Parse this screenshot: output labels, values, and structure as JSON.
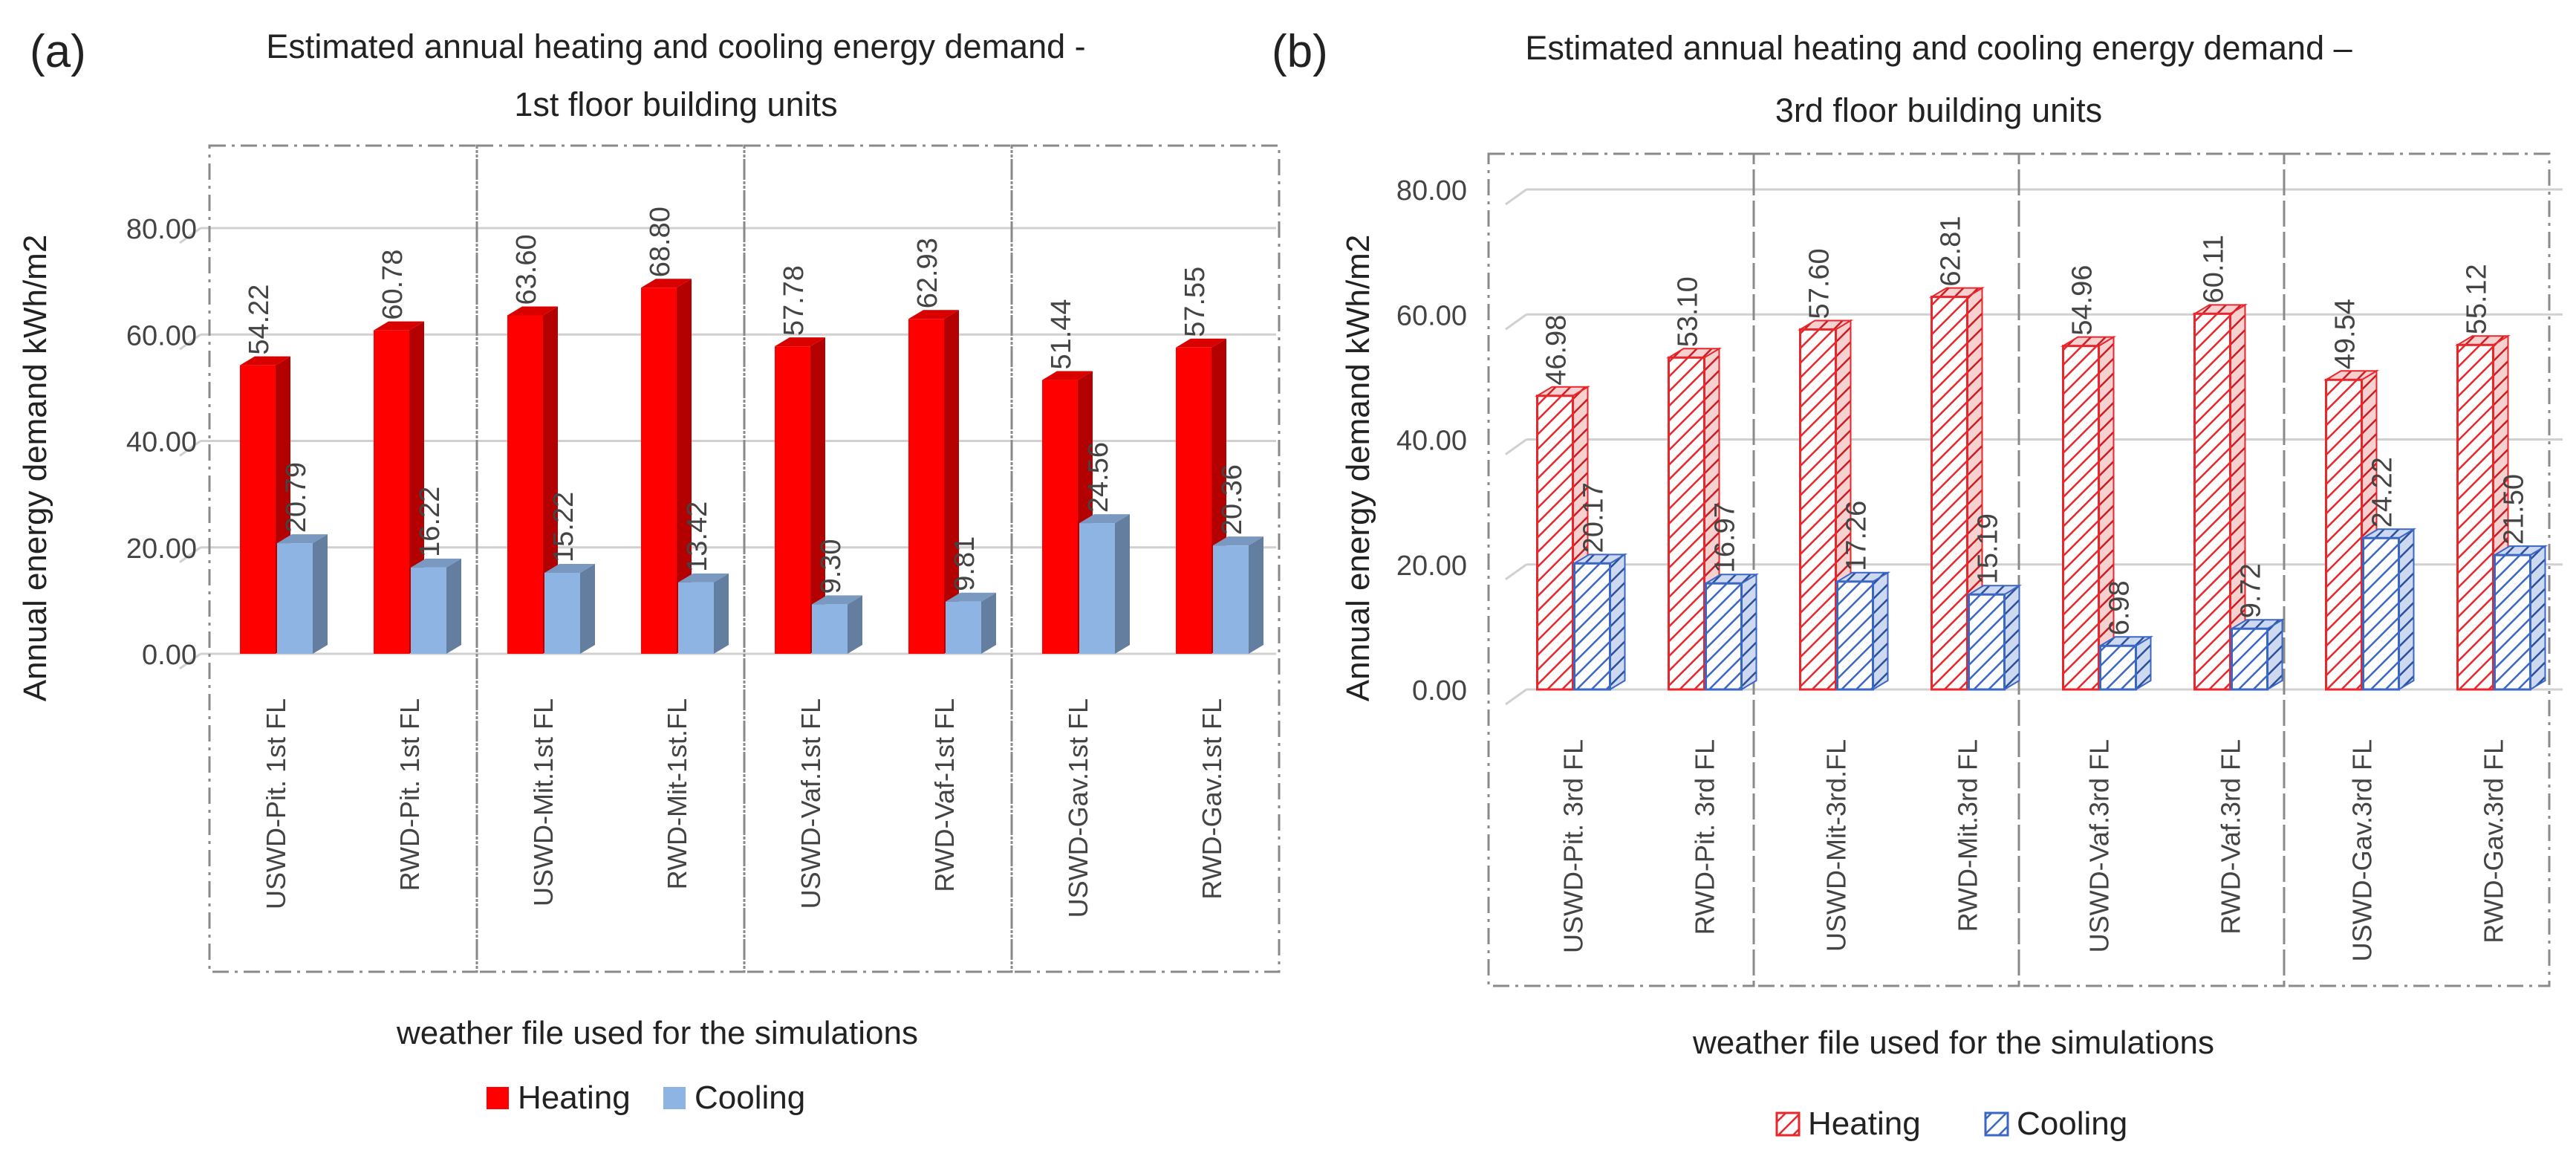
{
  "chart_data": [
    {
      "type": "bar",
      "panel_label": "(a)",
      "title_lines": [
        "Estimated annual heating and cooling energy demand -",
        "1st floor building units"
      ],
      "xlabel": "weather file used for the simulations",
      "ylabel": "Annual energy demand kWh/m2",
      "ylim": [
        0,
        80
      ],
      "yticks": [
        "0.00",
        "20.00",
        "40.00",
        "60.00",
        "80.00"
      ],
      "grid": true,
      "legend_position": "bottom",
      "bar_style": "solid",
      "categories": [
        "USWD-Pit. 1st FL",
        "RWD-Pit. 1st FL",
        "USWD-Mit.1st FL",
        "RWD-Mit-1st.FL",
        "USWD-Vaf.1st FL",
        "RWD-Vaf-1st FL",
        "USWD-Gav.1st FL",
        "RWD-Gav.1st FL"
      ],
      "series": [
        {
          "name": "Heating",
          "color": "#ff0000",
          "values": [
            54.22,
            60.78,
            63.6,
            68.8,
            57.78,
            62.93,
            51.44,
            57.55
          ],
          "labels": [
            "54.22",
            "60.78",
            "63.60",
            "68.80",
            "57.78",
            "62.93",
            "51.44",
            "57.55"
          ]
        },
        {
          "name": "Cooling",
          "color": "#8eb4e3",
          "values": [
            20.79,
            16.22,
            15.22,
            13.42,
            9.3,
            9.81,
            24.56,
            20.36
          ],
          "labels": [
            "20.79",
            "16.22",
            "15.22",
            "13.42",
            "9.30",
            "9.81",
            "24.56",
            "20.36"
          ]
        }
      ]
    },
    {
      "type": "bar",
      "panel_label": "(b)",
      "title_lines": [
        "Estimated annual heating and cooling energy demand –",
        "3rd floor building units"
      ],
      "xlabel": "weather file used for the simulations",
      "ylabel": "Annual energy demand kWh/m2",
      "ylim": [
        0,
        80
      ],
      "yticks": [
        "0.00",
        "20.00",
        "40.00",
        "60.00",
        "80.00"
      ],
      "grid": true,
      "legend_position": "bottom",
      "bar_style": "hatched",
      "categories": [
        "USWD-Pit. 3rd FL",
        "RWD-Pit. 3rd FL",
        "USWD-Mit-3rd.FL",
        "RWD-Mit.3rd FL",
        "USWD-Vaf.3rd FL",
        "RWD-Vaf.3rd FL",
        "USWD-Gav.3rd FL",
        "RWD-Gav.3rd FL"
      ],
      "series": [
        {
          "name": "Heating",
          "color": "#e8262b",
          "values": [
            46.98,
            53.1,
            57.6,
            62.81,
            54.96,
            60.11,
            49.54,
            55.12
          ],
          "labels": [
            "46.98",
            "53.10",
            "57.60",
            "62.81",
            "54.96",
            "60.11",
            "49.54",
            "55.12"
          ]
        },
        {
          "name": "Cooling",
          "color": "#3a66c4",
          "values": [
            20.17,
            16.97,
            17.26,
            15.19,
            6.98,
            9.72,
            24.22,
            21.5
          ],
          "labels": [
            "20.17",
            "16.97",
            "17.26",
            "15.19",
            "6.98",
            "9.72",
            "24.22",
            "21.50"
          ]
        }
      ]
    }
  ]
}
